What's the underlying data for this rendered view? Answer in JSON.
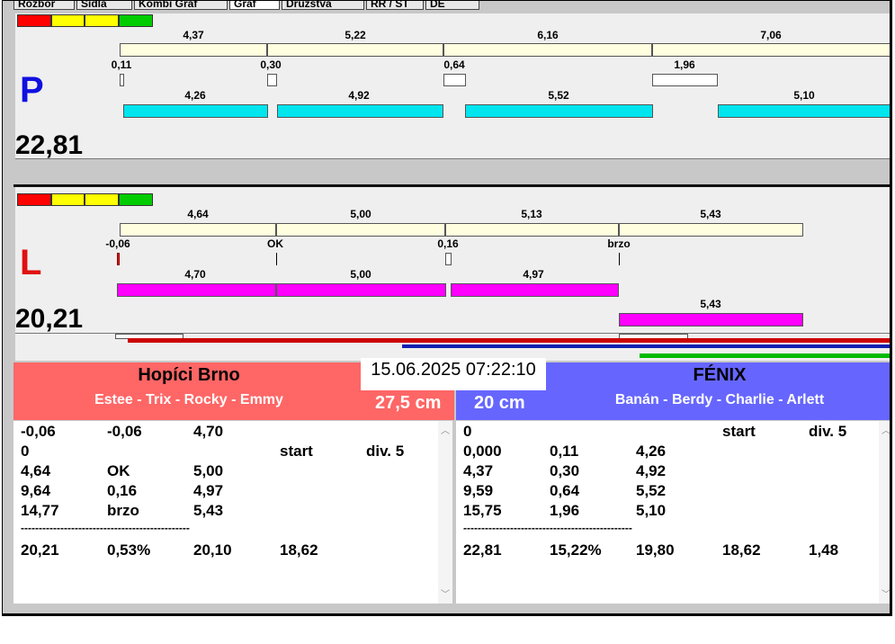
{
  "tabs": [
    "Rozbor",
    "Sidla",
    "Kombi Graf",
    "Graf",
    "Družstva",
    "RR / ST",
    "DE"
  ],
  "lanes": {
    "P": {
      "letter": "P",
      "letter_color": "#1010e0",
      "total": "22,81",
      "segments": [
        "4,37",
        "5,22",
        "6,16",
        "7,06"
      ],
      "changes": [
        "0,11",
        "0,30",
        "0,64",
        "1,96"
      ],
      "runs": [
        "4,26",
        "4,92",
        "5,52",
        "5,10"
      ],
      "run_color": "#00e5ee"
    },
    "L": {
      "letter": "L",
      "letter_color": "#e01010",
      "total": "20,21",
      "segments": [
        "4,64",
        "5,00",
        "5,13",
        "5,43"
      ],
      "changes": [
        "-0,06",
        "OK",
        "0,16",
        "brzo"
      ],
      "runs": [
        "4,70",
        "5,00",
        "4,97",
        "5,43"
      ],
      "run_color": "#ff00ff"
    }
  },
  "traffic_colors": [
    "#ff0000",
    "#ffff00",
    "#ffff00",
    "#00cc00"
  ],
  "timestamp": "15.06.2025 07:22:10",
  "left_team": {
    "name": "Hopíci Brno",
    "dogs": "Estee - Trix - Rocky - Emmy",
    "jump": "27,5 cm",
    "color": "#ff6666",
    "rows": [
      [
        "-0,06",
        "-0,06",
        "4,70",
        "",
        ""
      ],
      [
        "0",
        "",
        "",
        "start",
        "div. 5"
      ],
      [
        "4,64",
        "OK",
        "5,00",
        "",
        ""
      ],
      [
        "9,64",
        "0,16",
        "4,97",
        "",
        ""
      ],
      [
        "14,77",
        "brzo",
        "5,43",
        "",
        ""
      ],
      [
        "-----------------------------------------------",
        "",
        "",
        "",
        ""
      ],
      [
        "20,21",
        "0,53%",
        "20,10",
        "18,62",
        ""
      ]
    ]
  },
  "right_team": {
    "name": "FÉNIX",
    "dogs": "Banán - Berdy - Charlie - Arlett",
    "jump": "20 cm",
    "color": "#6666ff",
    "rows": [
      [
        "0",
        "",
        "",
        "start",
        "div. 5"
      ],
      [
        "0,000",
        "0,11",
        "4,26",
        "",
        ""
      ],
      [
        "4,37",
        "0,30",
        "4,92",
        "",
        ""
      ],
      [
        "9,59",
        "0,64",
        "5,52",
        "",
        ""
      ],
      [
        "15,75",
        "1,96",
        "5,10",
        "",
        ""
      ],
      [
        "-----------------------------------------------",
        "",
        "",
        "",
        ""
      ],
      [
        "22,81",
        "15,22%",
        "19,80",
        "18,62",
        "1,48"
      ]
    ]
  }
}
